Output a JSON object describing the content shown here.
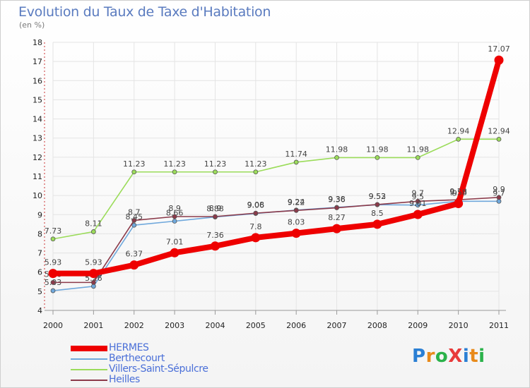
{
  "chart_data": {
    "type": "line",
    "title": "Evolution du Taux de Taxe d'Habitation",
    "subtitle": "(en %)",
    "x": [
      "2000",
      "2001",
      "2002",
      "2003",
      "2004",
      "2005",
      "2006",
      "2007",
      "2008",
      "2009",
      "2010",
      "2011"
    ],
    "ylim": [
      4,
      18
    ],
    "yticks": [
      "4",
      "5",
      "6",
      "7",
      "8",
      "9",
      "10",
      "11",
      "12",
      "13",
      "14",
      "15",
      "16",
      "17",
      "18"
    ],
    "grid": true,
    "legend_position": "bottom-left",
    "series": [
      {
        "name": "Berthecourt",
        "color": "#6fa8dc",
        "values": [
          5.03,
          5.26,
          8.45,
          8.66,
          8.88,
          9.06,
          9.24,
          9.38,
          9.52,
          9.5,
          9.7,
          9.7
        ],
        "labels": [
          "5.03",
          "5.26",
          "8.45",
          "8.66",
          "8.88",
          "9.06",
          "9.24",
          "9.38",
          "9.52",
          "9.5",
          "9.7",
          "9.7"
        ]
      },
      {
        "name": "Villers-Saint-Sépulcre",
        "color": "#9bdc5a",
        "values": [
          7.73,
          8.11,
          11.23,
          11.23,
          11.23,
          11.23,
          11.74,
          11.98,
          11.98,
          11.98,
          12.94,
          12.94
        ],
        "labels": [
          "7.73",
          "8.11",
          "11.23",
          "11.23",
          "11.23",
          "11.23",
          "11.74",
          "11.98",
          "11.98",
          "11.98",
          "12.94",
          "12.94"
        ]
      },
      {
        "name": "Heilles",
        "color": "#8b3a4a",
        "values": [
          5.46,
          5.46,
          8.7,
          8.9,
          8.9,
          9.08,
          9.22,
          9.36,
          9.53,
          9.7,
          9.78,
          9.9
        ],
        "labels": [
          "5.46",
          "5.46",
          "8.7",
          "8.9",
          "8.9",
          "9.08",
          "9.22",
          "9.36",
          "9.53",
          "9.7",
          "9.78",
          "9.9"
        ]
      },
      {
        "name": "HERMES",
        "color": "#ee0000",
        "values": [
          5.93,
          5.93,
          6.37,
          7.01,
          7.36,
          7.8,
          8.03,
          8.27,
          8.5,
          9.01,
          9.58,
          17.07
        ],
        "labels": [
          "5.93",
          "5.93",
          "6.37",
          "7.01",
          "7.36",
          "7.8",
          "8.03",
          "8.27",
          "8.5",
          "9.01",
          "9.58",
          "17.07"
        ]
      }
    ]
  },
  "legend": [
    {
      "label": "HERMES",
      "color": "#ee0000"
    },
    {
      "label": "Berthecourt",
      "color": "#6fa8dc"
    },
    {
      "label": "Villers-Saint-Sépulcre",
      "color": "#9bdc5a"
    },
    {
      "label": "Heilles",
      "color": "#8b3a4a"
    }
  ],
  "logo": {
    "text": "ProXiti",
    "letters": [
      "P",
      "r",
      "o",
      "X",
      "i",
      "t",
      "i"
    ],
    "colors": [
      "#2a7fd4",
      "#e88a1a",
      "#2ab24a",
      "#e83a3a",
      "#2a7fd4",
      "#e88a1a",
      "#2ab24a"
    ]
  }
}
